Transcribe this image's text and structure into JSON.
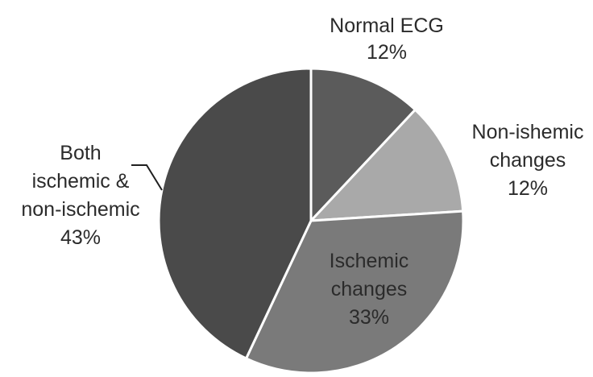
{
  "chart_data": {
    "type": "pie",
    "title": "",
    "slices": [
      {
        "name": "Normal ECG",
        "label_lines": [
          "Normal ECG",
          "12%"
        ],
        "value": 12,
        "color": "#5b5b5b"
      },
      {
        "name": "Non-ishemic changes",
        "label_lines": [
          "Non-ishemic",
          "changes",
          "12%"
        ],
        "value": 12,
        "color": "#a9a9a9"
      },
      {
        "name": "Ischemic changes",
        "label_lines": [
          "Ischemic",
          "changes",
          "33%"
        ],
        "value": 33,
        "color": "#7a7a7a"
      },
      {
        "name": "Both ischemic & non-ischemic",
        "label_lines": [
          "Both",
          "ischemic &",
          "non-ischemic",
          "43%"
        ],
        "value": 43,
        "color": "#4a4a4a"
      }
    ],
    "start_angle_deg": 0,
    "direction": "clockwise",
    "slice_border_color": "#ffffff",
    "legend": "none"
  }
}
